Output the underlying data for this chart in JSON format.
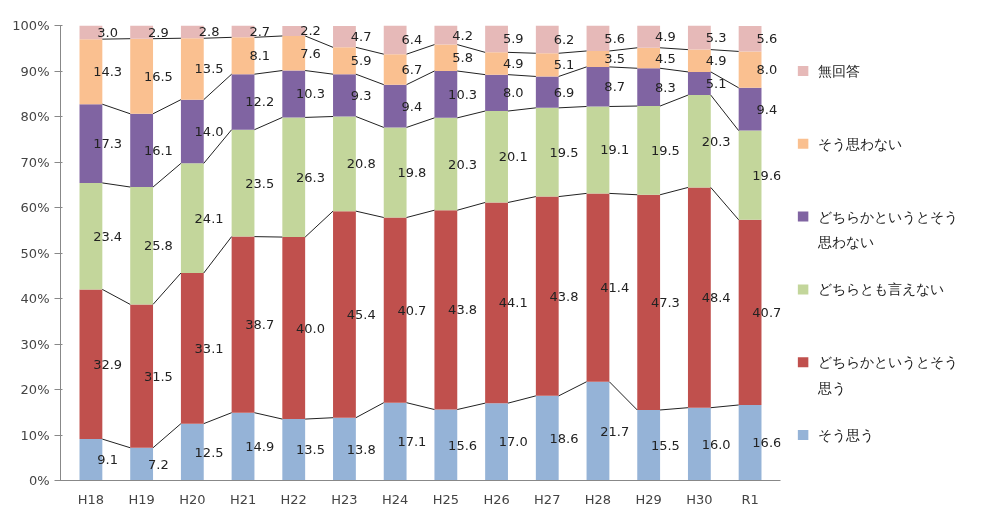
{
  "chart_data": {
    "type": "bar",
    "stacked": true,
    "legend": "right",
    "grid": false,
    "categories": [
      "H18",
      "H19",
      "H20",
      "H21",
      "H22",
      "H23",
      "H24",
      "H25",
      "H26",
      "H27",
      "H28",
      "H29",
      "H30",
      "R1"
    ],
    "ylim": [
      0,
      100
    ],
    "yticks": [
      {
        "value": 0,
        "label": "0%"
      },
      {
        "value": 10,
        "label": "10%"
      },
      {
        "value": 20,
        "label": "20%"
      },
      {
        "value": 30,
        "label": "30%"
      },
      {
        "value": 40,
        "label": "40%"
      },
      {
        "value": 50,
        "label": "50%"
      },
      {
        "value": 60,
        "label": "60%"
      },
      {
        "value": 70,
        "label": "70%"
      },
      {
        "value": 80,
        "label": "80%"
      },
      {
        "value": 90,
        "label": "90%"
      },
      {
        "value": 100,
        "label": "100%"
      }
    ],
    "series": [
      {
        "name": "そう思う",
        "color": "#95b3d7",
        "values": [
          9.1,
          7.2,
          12.5,
          14.9,
          13.5,
          13.8,
          17.1,
          15.6,
          17.0,
          18.6,
          21.7,
          15.5,
          16.0,
          16.6
        ],
        "value_labels": [
          "9.1",
          "7.2",
          "12.5",
          "14.9",
          "13.5",
          "13.8",
          "17.1",
          "15.6",
          "17.0",
          "18.6",
          "21.7",
          "15.5",
          "16.0",
          "16.6"
        ]
      },
      {
        "name": "どちらかというとそう思う",
        "color": "#c0504d",
        "values": [
          32.9,
          31.5,
          33.1,
          38.7,
          40.0,
          45.4,
          40.7,
          43.8,
          44.1,
          43.8,
          41.4,
          47.3,
          48.4,
          40.7
        ],
        "value_labels": [
          "32.9",
          "31.5",
          "33.1",
          "38.7",
          "40.0",
          "45.4",
          "40.7",
          "43.8",
          "44.1",
          "43.8",
          "41.4",
          "47.3",
          "48.4",
          "40.7"
        ]
      },
      {
        "name": "どちらとも言えない",
        "color": "#c3d69b",
        "values": [
          23.4,
          25.8,
          24.1,
          23.5,
          26.3,
          20.8,
          19.8,
          20.3,
          20.1,
          19.5,
          19.1,
          19.5,
          20.3,
          19.6
        ],
        "value_labels": [
          "23.4",
          "25.8",
          "24.1",
          "23.5",
          "26.3",
          "20.8",
          "19.8",
          "20.3",
          "20.1",
          "19.5",
          "19.1",
          "19.5",
          "20.3",
          "19.6"
        ]
      },
      {
        "name": "どちらかというとそう思わない",
        "color": "#8064a2",
        "values": [
          17.3,
          16.1,
          14.0,
          12.2,
          10.3,
          9.3,
          9.4,
          10.3,
          8.0,
          6.9,
          8.7,
          8.3,
          5.1,
          9.4
        ],
        "value_labels": [
          "17.3",
          "16.1",
          "14.0",
          "12.2",
          "10.3",
          "9.3",
          "9.4",
          "10.3",
          "8.0",
          "6.9",
          "8.7",
          "8.3",
          "5.1",
          "9.4"
        ]
      },
      {
        "name": "そう思わない",
        "color": "#fac090",
        "values": [
          14.3,
          16.5,
          13.5,
          8.1,
          7.6,
          5.9,
          6.7,
          5.8,
          4.9,
          5.1,
          3.5,
          4.5,
          4.9,
          8.0
        ],
        "value_labels": [
          "14.3",
          "16.5",
          "13.5",
          "8.1",
          "7.6",
          "5.9",
          "6.7",
          "5.8",
          "4.9",
          "5.1",
          "3.5",
          "4.5",
          "4.9",
          "8.0"
        ]
      },
      {
        "name": "無回答",
        "color": "#e6b9b8",
        "values": [
          3.0,
          2.9,
          2.8,
          2.7,
          2.2,
          4.7,
          6.4,
          4.2,
          5.9,
          6.2,
          5.6,
          4.9,
          5.3,
          5.6
        ],
        "value_labels": [
          "3.0",
          "2.9",
          "2.8",
          "2.7",
          "2.2",
          "4.7",
          "6.4",
          "4.2",
          "5.9",
          "6.2",
          "5.6",
          "4.9",
          "5.3",
          "5.6"
        ]
      }
    ]
  }
}
